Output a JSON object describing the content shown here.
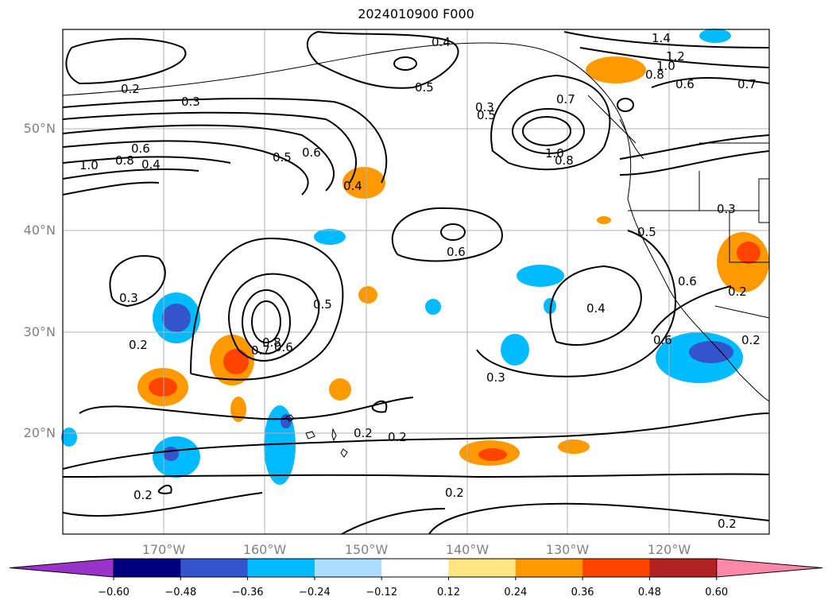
{
  "title": "2024010900 F000",
  "map": {
    "lat_labels": [
      "50°N",
      "40°N",
      "30°N",
      "20°N"
    ],
    "lon_labels": [
      "170°W",
      "160°W",
      "150°W",
      "140°W",
      "130°W",
      "120°W"
    ],
    "contour_labels": [
      "0.2",
      "0.3",
      "0.4",
      "0.5",
      "0.6",
      "0.8",
      "1.0",
      "0.7",
      "0.2",
      "0.2",
      "0.2",
      "0.3",
      "0.5",
      "0.6",
      "0.4",
      "0.6",
      "0.5",
      "0.3",
      "0.4",
      "0.6",
      "0.2",
      "1.4",
      "1.2",
      "1.0",
      "0.8",
      "0.6",
      "0.7",
      "1.0",
      "0.8",
      "0.3",
      "0.5",
      "0.4",
      "0.6",
      "0.2",
      "0.3",
      "0.2",
      "0.8",
      "0.7",
      "0.6",
      "0.5",
      "0.2",
      "0.2"
    ]
  },
  "colorbar": {
    "ticks": [
      "−0.60",
      "−0.48",
      "−0.36",
      "−0.24",
      "−0.12",
      "0.12",
      "0.24",
      "0.36",
      "0.48",
      "0.60"
    ],
    "colors": [
      "#9933cc",
      "#000080",
      "#3355cc",
      "#00bbff",
      "#aaddff",
      "#ffffff",
      "#ffe680",
      "#ff9900",
      "#ff4400",
      "#b22222",
      "#ff88aa"
    ]
  }
}
